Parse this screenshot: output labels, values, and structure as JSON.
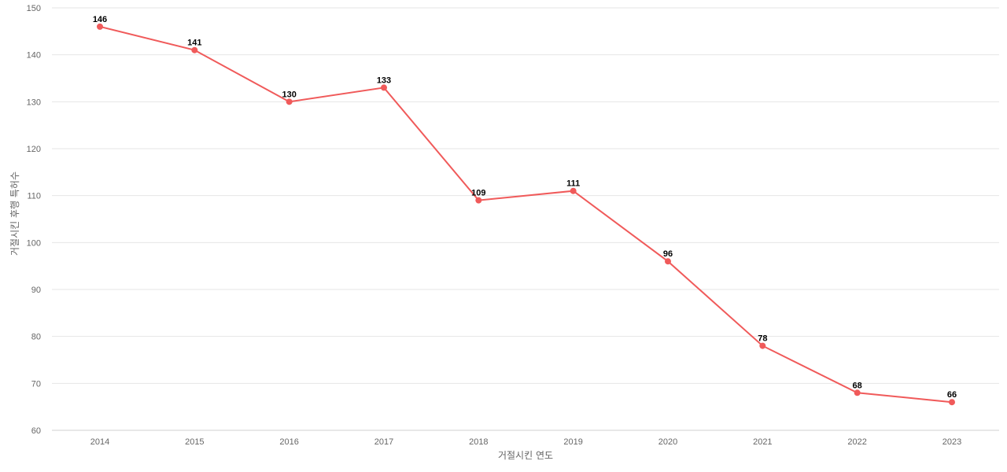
{
  "chart_data": {
    "type": "line",
    "title": "",
    "xlabel": "거절시킨 연도",
    "ylabel": "거절시킨 후행 특허수",
    "categories": [
      "2014",
      "2015",
      "2016",
      "2017",
      "2018",
      "2019",
      "2020",
      "2021",
      "2022",
      "2023"
    ],
    "series": [
      {
        "values": [
          146,
          141,
          130,
          133,
          109,
          111,
          96,
          78,
          68,
          66
        ],
        "color": "#f05a5a"
      }
    ],
    "ylim": [
      60,
      150
    ],
    "yticks": [
      60,
      70,
      80,
      90,
      100,
      110,
      120,
      130,
      140,
      150
    ],
    "grid": true,
    "legend": "none",
    "data_labels": true
  }
}
